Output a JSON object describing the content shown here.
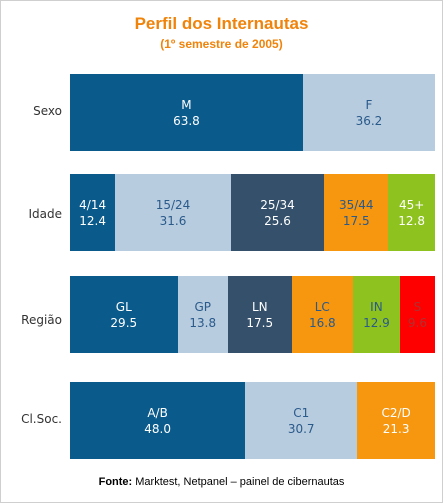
{
  "chart_data": {
    "type": "bar",
    "orientation": "horizontal-stacked-100",
    "title": "Perfil dos Internautas",
    "subtitle": "(1º semestre de 2005)",
    "rows": [
      {
        "label": "Sexo",
        "segments": [
          {
            "name": "M",
            "value": 63.8,
            "value_label": "63.8",
            "color": "#0a5a8c",
            "text_color": "#ffffff"
          },
          {
            "name": "F",
            "value": 36.2,
            "value_label": "36.2",
            "color": "#b8cce0",
            "text_color": "#2a5a8a"
          }
        ]
      },
      {
        "label": "Idade",
        "segments": [
          {
            "name": "4/14",
            "value": 12.4,
            "value_label": "12.4",
            "color": "#0a5a8c",
            "text_color": "#ffffff"
          },
          {
            "name": "15/24",
            "value": 31.6,
            "value_label": "31.6",
            "color": "#b8cce0",
            "text_color": "#2a5a8a"
          },
          {
            "name": "25/34",
            "value": 25.6,
            "value_label": "25.6",
            "color": "#34506a",
            "text_color": "#ffffff"
          },
          {
            "name": "35/44",
            "value": 17.5,
            "value_label": "17.5",
            "color": "#f7960f",
            "text_color": "#2a5a8a"
          },
          {
            "name": "45+",
            "value": 12.8,
            "value_label": "12.8",
            "color": "#8dc21f",
            "text_color": "#ffffff"
          }
        ]
      },
      {
        "label": "Região",
        "segments": [
          {
            "name": "GL",
            "value": 29.5,
            "value_label": "29.5",
            "color": "#0a5a8c",
            "text_color": "#ffffff"
          },
          {
            "name": "GP",
            "value": 13.8,
            "value_label": "13.8",
            "color": "#b8cce0",
            "text_color": "#2a5a8a"
          },
          {
            "name": "LN",
            "value": 17.5,
            "value_label": "17.5",
            "color": "#34506a",
            "text_color": "#ffffff"
          },
          {
            "name": "LC",
            "value": 16.8,
            "value_label": "16.8",
            "color": "#f7960f",
            "text_color": "#2a5a8a"
          },
          {
            "name": "IN",
            "value": 12.9,
            "value_label": "12.9",
            "color": "#8dc21f",
            "text_color": "#2a5a8a"
          },
          {
            "name": "S",
            "value": 9.6,
            "value_label": "9.6",
            "color": "#ff0000",
            "text_color": "#b03030"
          }
        ]
      },
      {
        "label": "Cl.Soc.",
        "segments": [
          {
            "name": "A/B",
            "value": 48.0,
            "value_label": "48.0",
            "color": "#0a5a8c",
            "text_color": "#ffffff"
          },
          {
            "name": "C1",
            "value": 30.7,
            "value_label": "30.7",
            "color": "#b8cce0",
            "text_color": "#2a5a8a"
          },
          {
            "name": "C2/D",
            "value": 21.3,
            "value_label": "21.3",
            "color": "#f7960f",
            "text_color": "#ffffff"
          }
        ]
      }
    ]
  },
  "footer": {
    "source_label": "Fonte:",
    "source_text": " Marktest, Netpanel – painel de cibernautas"
  }
}
